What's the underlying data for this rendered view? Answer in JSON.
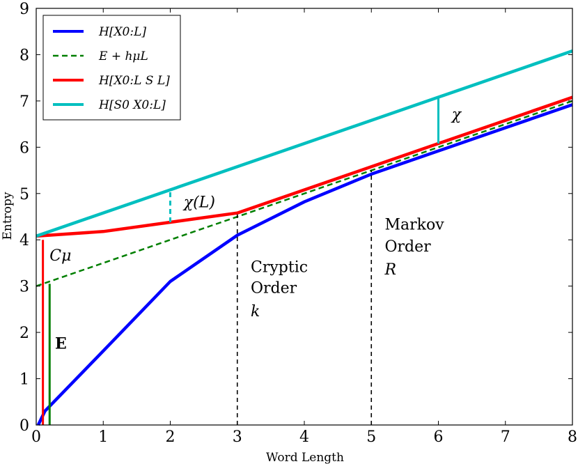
{
  "chart_data": {
    "type": "line",
    "title": "",
    "xlabel": "Word Length",
    "ylabel": "Entropy",
    "xlim": [
      0,
      8
    ],
    "ylim": [
      0,
      9
    ],
    "xticks": [
      "0",
      "1",
      "2",
      "3",
      "4",
      "5",
      "6",
      "7",
      "8"
    ],
    "yticks": [
      "0",
      "1",
      "2",
      "3",
      "4",
      "5",
      "6",
      "7",
      "8",
      "9"
    ],
    "legend_position": "top-left",
    "series": [
      {
        "name": "H[X_{0:L}]",
        "legend_label": "H[X0:L]",
        "color": "#0000ff",
        "style": "solid",
        "x": [
          0.03,
          0.13,
          1.0,
          2.0,
          3.0,
          4.0,
          5.0,
          6.0,
          7.0,
          8.0
        ],
        "y": [
          0.0,
          0.3,
          1.6,
          3.1,
          4.1,
          4.82,
          5.42,
          5.92,
          6.42,
          6.92
        ]
      },
      {
        "name": "E + h_mu L",
        "legend_label": "E + hμL",
        "color": "#007f00",
        "style": "dashed",
        "x": [
          0.0,
          8.0
        ],
        "y": [
          3.0,
          7.0
        ]
      },
      {
        "name": "H[X_{0:L} S_L]",
        "legend_label": "H[X0:L S L]",
        "color": "#ff0000",
        "style": "solid",
        "x": [
          0.0,
          1.0,
          2.0,
          3.0,
          8.0
        ],
        "y": [
          4.08,
          4.18,
          4.38,
          4.58,
          7.08
        ]
      },
      {
        "name": "H[S_0 X_{0:L}]",
        "legend_label": "H[S0 X0:L]",
        "color": "#00bfbf",
        "style": "solid",
        "x": [
          0.0,
          8.0
        ],
        "y": [
          4.08,
          8.08
        ]
      }
    ],
    "segments": [
      {
        "name": "cmu-bar",
        "color": "#ff0000",
        "style": "solid",
        "x1": 0.1,
        "y1": 0.0,
        "x2": 0.1,
        "y2": 4.0
      },
      {
        "name": "e-bar",
        "color": "#007f00",
        "style": "solid",
        "x1": 0.2,
        "y1": 0.0,
        "x2": 0.2,
        "y2": 3.05
      },
      {
        "name": "chi-L-gap",
        "color": "#00bfbf",
        "style": "dashed",
        "x1": 2.0,
        "y1": 4.38,
        "x2": 2.0,
        "y2": 5.08
      },
      {
        "name": "chi-gap",
        "color": "#00bfbf",
        "style": "solid",
        "x1": 6.0,
        "y1": 6.08,
        "x2": 6.0,
        "y2": 7.08
      },
      {
        "name": "cryptic-order-line",
        "color": "#000000",
        "style": "dashed",
        "x1": 3.0,
        "y1": 0.0,
        "x2": 3.0,
        "y2": 4.55
      },
      {
        "name": "markov-order-line",
        "color": "#000000",
        "style": "dashed",
        "x1": 5.0,
        "y1": 0.0,
        "x2": 5.0,
        "y2": 5.5
      }
    ],
    "annotations": {
      "cmu": {
        "text": "Cμ",
        "x": 0.2,
        "y": 3.55
      },
      "e": {
        "text": "E",
        "x": 0.28,
        "y": 1.65
      },
      "chi_l": {
        "text": "χ(L)",
        "x": 2.2,
        "y": 4.7
      },
      "chi": {
        "text": "χ",
        "x": 6.2,
        "y": 6.6
      },
      "cryptic_line1": {
        "text": "Cryptic",
        "x": 3.2,
        "y": 3.3
      },
      "cryptic_line2": {
        "text": "Order",
        "x": 3.2,
        "y": 2.85
      },
      "cryptic_line3": {
        "text": "k",
        "x": 3.2,
        "y": 2.35
      },
      "markov_line1": {
        "text": "Markov",
        "x": 5.2,
        "y": 4.22
      },
      "markov_line2": {
        "text": "Order",
        "x": 5.2,
        "y": 3.75
      },
      "markov_line3": {
        "text": "R",
        "x": 5.2,
        "y": 3.25
      }
    }
  }
}
